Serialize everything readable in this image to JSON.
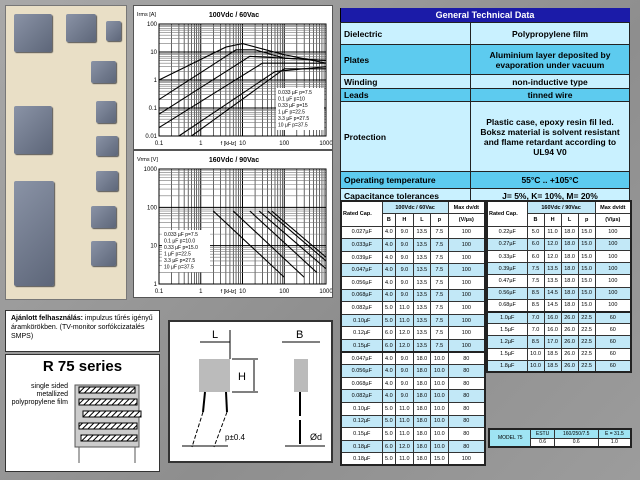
{
  "note": {
    "bold": "Ajánlott felhasználás:",
    "text": " impulzus tűrés igényű áramkörökben. (TV-monitor sorfókcizatalés SMPS)"
  },
  "series_box": {
    "title": "R 75 series",
    "film_label": "single sided metallized polypropylene film"
  },
  "dimension_drawing": {
    "L": "L",
    "B": "B",
    "H": "H",
    "p": "p±0.4",
    "d": "Ød"
  },
  "general": {
    "title": "General Technical Data",
    "rows": [
      {
        "label": "Dielectric",
        "value": "Polypropylene film",
        "dark": false
      },
      {
        "label": "Plates",
        "value": "Aluminium layer deposited by evaporation under vacuum",
        "dark": true
      },
      {
        "label": "Winding",
        "value": "non-inductive type",
        "dark": false
      },
      {
        "label": "Leads",
        "value": "tinned wire",
        "dark": true
      },
      {
        "label": "Protection",
        "value": "Plastic case, epoxy resin fil led. Boksz material is solvent resistant and flame retardant according to UL94 V0",
        "dark": false
      },
      {
        "label": "Operating temperature",
        "value": "55°C .. +105°C",
        "dark": true
      },
      {
        "label": "Capacitance tolerances",
        "value": "J= 5%, K= 10%, M= 20%",
        "dark": false
      }
    ]
  },
  "table1": {
    "cap_header": "Rated Cap.",
    "voltage": "100Vdc / 60Vac",
    "cols": [
      "B",
      "H",
      "L",
      "p"
    ],
    "dvdt": "Max dv/dt",
    "dvdt_unit": "(V/µs)",
    "rows": [
      [
        "0.027µF",
        "4.0",
        "9.0",
        "13.5",
        "7.5",
        "100"
      ],
      [
        "0.033µF",
        "4.0",
        "9.0",
        "13.5",
        "7.5",
        "100"
      ],
      [
        "0.039µF",
        "4.0",
        "9.0",
        "13.5",
        "7.5",
        "100"
      ],
      [
        "0.047µF",
        "4.0",
        "9.0",
        "13.5",
        "7.5",
        "100"
      ],
      [
        "0.056µF",
        "4.0",
        "9.0",
        "13.5",
        "7.5",
        "100"
      ],
      [
        "0.068µF",
        "4.0",
        "9.0",
        "13.5",
        "7.5",
        "100"
      ],
      [
        "0.082µF",
        "5.0",
        "11.0",
        "13.5",
        "7.5",
        "100"
      ],
      [
        "0.10µF",
        "5.0",
        "11.0",
        "13.5",
        "7.5",
        "100"
      ],
      [
        "0.12µF",
        "6.0",
        "12.0",
        "13.5",
        "7.5",
        "100"
      ],
      [
        "0.15µF",
        "6.0",
        "12.0",
        "13.5",
        "7.5",
        "100"
      ],
      [
        "0.047µF",
        "4.0",
        "9.0",
        "18.0",
        "10.0",
        "80"
      ],
      [
        "0.056µF",
        "4.0",
        "9.0",
        "18.0",
        "10.0",
        "80"
      ],
      [
        "0.068µF",
        "4.0",
        "9.0",
        "18.0",
        "10.0",
        "80"
      ],
      [
        "0.082µF",
        "4.0",
        "9.0",
        "18.0",
        "10.0",
        "80"
      ],
      [
        "0.10µF",
        "5.0",
        "11.0",
        "18.0",
        "10.0",
        "80"
      ],
      [
        "0.12µF",
        "5.0",
        "11.0",
        "18.0",
        "10.0",
        "80"
      ],
      [
        "0.15µF",
        "5.0",
        "11.0",
        "18.0",
        "10.0",
        "80"
      ],
      [
        "0.18µF",
        "6.0",
        "12.0",
        "18.0",
        "10.0",
        "80"
      ],
      [
        "0.18µF",
        "5.0",
        "11.0",
        "18.0",
        "15.0",
        "100"
      ]
    ]
  },
  "table2": {
    "cap_header": "Rated Cap.",
    "voltage": "160Vdc / 90Vac",
    "cols": [
      "B",
      "H",
      "L",
      "p"
    ],
    "dvdt": "Max dv/dt",
    "dvdt_unit": "(V/µs)",
    "rows": [
      [
        "0.22µF",
        "5.0",
        "11.0",
        "18.0",
        "15.0",
        "100"
      ],
      [
        "0.27µF",
        "6.0",
        "12.0",
        "18.0",
        "15.0",
        "100"
      ],
      [
        "0.33µF",
        "6.0",
        "12.0",
        "18.0",
        "15.0",
        "100"
      ],
      [
        "0.39µF",
        "7.5",
        "13.5",
        "18.0",
        "15.0",
        "100"
      ],
      [
        "0.47µF",
        "7.5",
        "13.5",
        "18.0",
        "15.0",
        "100"
      ],
      [
        "0.56µF",
        "8.5",
        "14.5",
        "18.0",
        "15.0",
        "100"
      ],
      [
        "0.68µF",
        "8.5",
        "14.5",
        "18.0",
        "15.0",
        "100"
      ],
      [
        "1.0µF",
        "7.0",
        "16.0",
        "26.0",
        "22.5",
        "60"
      ],
      [
        "1.5µF",
        "7.0",
        "16.0",
        "26.0",
        "22.5",
        "60"
      ],
      [
        "1.2µF",
        "8.5",
        "17.0",
        "26.0",
        "22.5",
        "60"
      ],
      [
        "1.5µF",
        "10.0",
        "18.5",
        "26.0",
        "22.5",
        "60"
      ],
      [
        "1.8µF",
        "10.0",
        "18.5",
        "26.0",
        "22.5",
        "60"
      ]
    ]
  },
  "strip": {
    "label": "MODEL 75",
    "heads": [
      "ESTU",
      "160/250/7.5",
      "E = 31.5"
    ],
    "values": [
      "0.6",
      "0.6",
      "1.0"
    ]
  },
  "chart_data": [
    {
      "type": "line",
      "title": "100Vdc / 60Vac",
      "ylabel": "Irms [A]",
      "xlabel": "f [kHz]",
      "xscale": "log",
      "yscale": "log",
      "xlim": [
        0.1,
        1000
      ],
      "ylim": [
        0.01,
        100
      ],
      "grid": true,
      "legend": "bottom-right",
      "xticks": [
        "0.1",
        "1",
        "10",
        "100",
        "1000"
      ],
      "yticks": [
        "0.01",
        "0.1",
        "1",
        "10",
        "100"
      ],
      "series": [
        {
          "name": "0.033 µF p=7.5",
          "points": [
            [
              0.1,
              1
            ],
            [
              4,
              15
            ],
            [
              10,
              20
            ],
            [
              100,
              8
            ],
            [
              1000,
              4
            ]
          ]
        },
        {
          "name": "0.1 µF p=10",
          "points": [
            [
              0.1,
              0.2
            ],
            [
              7,
              12
            ],
            [
              20,
              12
            ],
            [
              100,
              6
            ],
            [
              1000,
              5
            ]
          ]
        },
        {
          "name": "0.33 µF p=15",
          "points": [
            [
              0.1,
              0.06
            ],
            [
              15,
              7
            ],
            [
              1000,
              5
            ]
          ]
        },
        {
          "name": "1 µF p=22.5",
          "points": [
            [
              0.1,
              0.02
            ],
            [
              30,
              4
            ],
            [
              1000,
              4
            ]
          ]
        },
        {
          "name": "3.3 µF p=27.5",
          "points": [
            [
              0.3,
              0.01
            ],
            [
              60,
              2
            ],
            [
              1000,
              3
            ]
          ]
        },
        {
          "name": "10 µF p=37.5",
          "points": [
            [
              0.6,
              0.01
            ],
            [
              100,
              2.5
            ],
            [
              1000,
              2.5
            ]
          ]
        }
      ]
    },
    {
      "type": "line",
      "title": "160Vdc / 90Vac",
      "ylabel": "Vrms [V]",
      "xlabel": "f [kHz]",
      "xscale": "log",
      "yscale": "log",
      "xlim": [
        0.1,
        1000
      ],
      "ylim": [
        1,
        1000
      ],
      "grid": true,
      "legend": "bottom-left",
      "xticks": [
        "0.1",
        "1",
        "10",
        "100",
        "1000"
      ],
      "yticks": [
        "1",
        "10",
        "100",
        "1000"
      ],
      "series": [
        {
          "name": "0.033 µF p=7.5",
          "points": [
            [
              2,
              80
            ],
            [
              100,
              1.5
            ]
          ]
        },
        {
          "name": "0.1 µF p=10.0",
          "points": [
            [
              6,
              80
            ],
            [
              300,
              1.5
            ]
          ]
        },
        {
          "name": "0.33 µF p=15.0",
          "points": [
            [
              15,
              80
            ],
            [
              600,
              2
            ]
          ]
        },
        {
          "name": "1 µF p=22.5",
          "points": [
            [
              25,
              80
            ],
            [
              1000,
              2.5
            ]
          ]
        },
        {
          "name": "3.3 µF p=27.5",
          "points": [
            [
              40,
              80
            ],
            [
              1000,
              4
            ]
          ]
        },
        {
          "name": "10 µF p=37.5",
          "points": [
            [
              50,
              80
            ],
            [
              1000,
              5
            ]
          ]
        }
      ]
    }
  ]
}
